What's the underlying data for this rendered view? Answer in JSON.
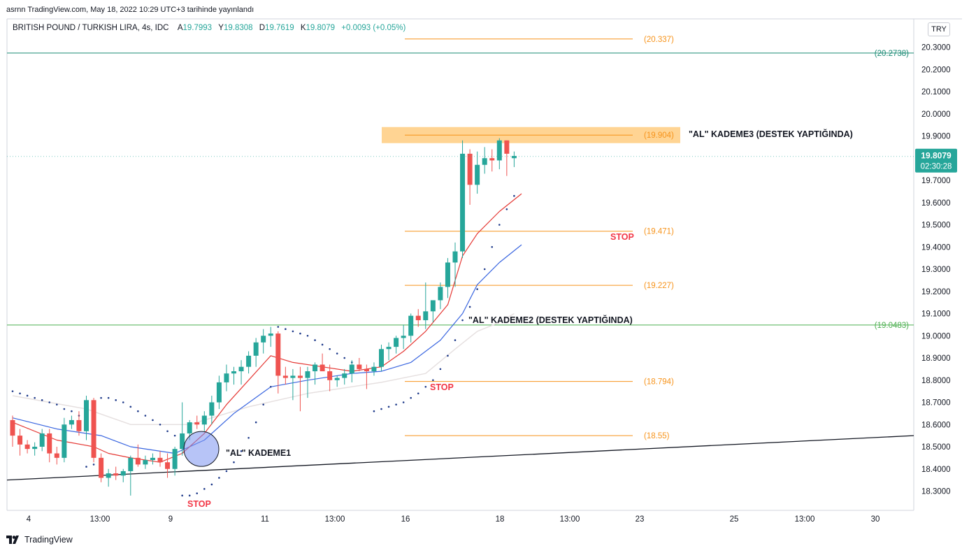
{
  "header": {
    "published": "asrnn TradingView.com, May 18, 2022 10:29 UTC+3 tarihinde yayınlandı"
  },
  "legend": {
    "symbol": "BRITISH POUND / TURKISH LIRA, 4s, IDC",
    "o_label": "A",
    "o": "19.7993",
    "h_label": "Y",
    "h": "19.8308",
    "l_label": "D",
    "l": "19.7619",
    "c_label": "K",
    "c": "19.8079",
    "change": "+0.0093 (+0.05%)"
  },
  "currency_button": "TRY",
  "footer": {
    "logo_text": "TradingView"
  },
  "colors": {
    "up": "#26a69a",
    "down": "#ef5350",
    "orange": "#f7931a",
    "green_line": "#2e8b57",
    "ema_fast": "#e53935",
    "ema_slow": "#3a66e0",
    "sar": "#1e3a8a",
    "highlight": "#ffcc80",
    "stop": "#f23645"
  },
  "chart_data": {
    "type": "candlestick",
    "title": "BRITISH POUND / TURKISH LIRA, 4s, IDC",
    "ylim": [
      18.24,
      20.42
    ],
    "y_ticks": [
      "20.3000",
      "20.2000",
      "20.1000",
      "20.0000",
      "19.9000",
      "19.8000",
      "19.7000",
      "19.6000",
      "19.5000",
      "19.4000",
      "19.3000",
      "19.2000",
      "19.1000",
      "19.0000",
      "18.9000",
      "18.8000",
      "18.7000",
      "18.6000",
      "18.5000",
      "18.4000",
      "18.3000"
    ],
    "x_ticks": [
      "4",
      "13:00",
      "9",
      "11",
      "13:00",
      "16",
      "18",
      "13:00",
      "23",
      "25",
      "13:00",
      "30"
    ],
    "last_price": {
      "value": "19.8079",
      "countdown": "02:30:28"
    },
    "candles": [
      [
        18.62,
        18.64,
        18.5,
        18.55
      ],
      [
        18.55,
        18.58,
        18.46,
        18.51
      ],
      [
        18.51,
        18.53,
        18.47,
        18.49
      ],
      [
        18.49,
        18.52,
        18.46,
        18.5
      ],
      [
        18.5,
        18.58,
        18.48,
        18.56
      ],
      [
        18.56,
        18.58,
        18.43,
        18.47
      ],
      [
        18.47,
        18.5,
        18.42,
        18.45
      ],
      [
        18.45,
        18.63,
        18.43,
        18.6
      ],
      [
        18.6,
        18.64,
        18.58,
        18.62
      ],
      [
        18.62,
        18.66,
        18.55,
        18.57
      ],
      [
        18.57,
        18.73,
        18.53,
        18.71
      ],
      [
        18.71,
        18.72,
        18.43,
        18.45
      ],
      [
        18.45,
        18.47,
        18.34,
        18.36
      ],
      [
        18.36,
        18.4,
        18.32,
        18.38
      ],
      [
        18.38,
        18.41,
        18.35,
        18.37
      ],
      [
        18.37,
        18.4,
        18.34,
        18.39
      ],
      [
        18.39,
        18.46,
        18.28,
        18.45
      ],
      [
        18.45,
        18.51,
        18.41,
        18.42
      ],
      [
        18.42,
        18.46,
        18.4,
        18.44
      ],
      [
        18.44,
        18.47,
        18.42,
        18.45
      ],
      [
        18.45,
        18.48,
        18.41,
        18.43
      ],
      [
        18.43,
        18.47,
        18.36,
        18.4
      ],
      [
        18.4,
        18.5,
        18.37,
        18.49
      ],
      [
        18.49,
        18.7,
        18.46,
        18.56
      ],
      [
        18.56,
        18.62,
        18.53,
        18.61
      ],
      [
        18.61,
        18.64,
        18.58,
        18.6
      ],
      [
        18.6,
        18.66,
        18.57,
        18.64
      ],
      [
        18.64,
        18.73,
        18.6,
        18.7
      ],
      [
        18.7,
        18.82,
        18.67,
        18.79
      ],
      [
        18.79,
        18.87,
        18.75,
        18.83
      ],
      [
        18.83,
        18.86,
        18.78,
        18.84
      ],
      [
        18.84,
        18.89,
        18.78,
        18.86
      ],
      [
        18.86,
        18.93,
        18.83,
        18.91
      ],
      [
        18.91,
        18.99,
        18.86,
        18.97
      ],
      [
        18.97,
        19.03,
        18.92,
        19.0
      ],
      [
        19.0,
        19.04,
        18.95,
        19.01
      ],
      [
        19.01,
        19.02,
        18.74,
        18.82
      ],
      [
        18.82,
        18.86,
        18.78,
        18.81
      ],
      [
        18.81,
        18.85,
        18.71,
        18.82
      ],
      [
        18.82,
        18.86,
        18.66,
        18.81
      ],
      [
        18.81,
        18.86,
        18.72,
        18.84
      ],
      [
        18.84,
        18.88,
        18.78,
        18.87
      ],
      [
        18.87,
        18.92,
        18.85,
        18.84
      ],
      [
        18.84,
        18.87,
        18.75,
        18.8
      ],
      [
        18.8,
        18.82,
        18.77,
        18.81
      ],
      [
        18.81,
        18.85,
        18.78,
        18.83
      ],
      [
        18.83,
        18.89,
        18.79,
        18.87
      ],
      [
        18.87,
        18.9,
        18.84,
        18.85
      ],
      [
        18.85,
        18.87,
        18.76,
        18.84
      ],
      [
        18.84,
        18.88,
        18.82,
        18.86
      ],
      [
        18.86,
        18.96,
        18.84,
        18.94
      ],
      [
        18.94,
        18.97,
        18.89,
        18.95
      ],
      [
        18.95,
        19.0,
        18.92,
        18.99
      ],
      [
        18.99,
        19.05,
        18.94,
        19.0
      ],
      [
        19.0,
        19.1,
        18.97,
        19.09
      ],
      [
        19.09,
        19.12,
        19.04,
        19.07
      ],
      [
        19.07,
        19.24,
        19.03,
        19.11
      ],
      [
        19.11,
        19.14,
        19.06,
        19.16
      ],
      [
        19.16,
        19.24,
        19.12,
        19.22
      ],
      [
        19.22,
        19.35,
        19.17,
        19.33
      ],
      [
        19.33,
        19.42,
        19.22,
        19.38
      ],
      [
        19.38,
        19.88,
        19.35,
        19.82
      ],
      [
        19.82,
        19.84,
        19.59,
        19.68
      ],
      [
        19.68,
        19.83,
        19.64,
        19.77
      ],
      [
        19.77,
        19.85,
        19.73,
        19.8
      ],
      [
        19.8,
        19.84,
        19.74,
        19.79
      ],
      [
        19.79,
        19.89,
        19.75,
        19.88
      ],
      [
        19.88,
        19.88,
        19.72,
        19.82
      ],
      [
        19.8,
        19.83,
        19.76,
        19.81
      ]
    ],
    "ema_fast": [
      [
        0,
        18.61
      ],
      [
        6,
        18.53
      ],
      [
        11,
        18.5
      ],
      [
        13,
        18.47
      ],
      [
        16,
        18.45
      ],
      [
        20,
        18.43
      ],
      [
        23,
        18.47
      ],
      [
        26,
        18.56
      ],
      [
        29,
        18.69
      ],
      [
        32,
        18.8
      ],
      [
        35,
        18.91
      ],
      [
        38,
        18.88
      ],
      [
        42,
        18.86
      ],
      [
        46,
        18.84
      ],
      [
        50,
        18.86
      ],
      [
        53,
        18.93
      ],
      [
        56,
        19.02
      ],
      [
        59,
        19.14
      ],
      [
        61,
        19.36
      ],
      [
        63,
        19.46
      ],
      [
        66,
        19.56
      ],
      [
        69,
        19.64
      ]
    ],
    "ema_slow": [
      [
        0,
        18.63
      ],
      [
        6,
        18.58
      ],
      [
        12,
        18.55
      ],
      [
        16,
        18.5
      ],
      [
        22,
        18.47
      ],
      [
        26,
        18.53
      ],
      [
        30,
        18.65
      ],
      [
        35,
        18.77
      ],
      [
        40,
        18.8
      ],
      [
        46,
        18.83
      ],
      [
        50,
        18.84
      ],
      [
        54,
        18.88
      ],
      [
        58,
        18.98
      ],
      [
        61,
        19.1
      ],
      [
        63,
        19.23
      ],
      [
        66,
        19.33
      ],
      [
        69,
        19.41
      ]
    ],
    "ema_long": [
      [
        0,
        18.73
      ],
      [
        10,
        18.67
      ],
      [
        16,
        18.6
      ],
      [
        24,
        18.6
      ],
      [
        32,
        18.68
      ],
      [
        40,
        18.74
      ],
      [
        50,
        18.79
      ],
      [
        56,
        18.83
      ],
      [
        60,
        18.94
      ],
      [
        63,
        19.02
      ],
      [
        66,
        19.06
      ],
      [
        68,
        19.1
      ]
    ],
    "sar": [
      [
        0,
        18.75
      ],
      [
        1,
        18.74
      ],
      [
        2,
        18.73
      ],
      [
        3,
        18.72
      ],
      [
        4,
        18.71
      ],
      [
        5,
        18.7
      ],
      [
        6,
        18.69
      ],
      [
        7,
        18.67
      ],
      [
        8,
        18.66
      ],
      [
        9,
        18.64
      ],
      [
        10,
        18.41
      ],
      [
        11,
        18.42
      ],
      [
        12,
        18.72
      ],
      [
        13,
        18.72
      ],
      [
        14,
        18.71
      ],
      [
        15,
        18.7
      ],
      [
        16,
        18.68
      ],
      [
        17,
        18.66
      ],
      [
        18,
        18.64
      ],
      [
        19,
        18.62
      ],
      [
        20,
        18.6
      ],
      [
        21,
        18.57
      ],
      [
        22,
        18.55
      ],
      [
        23,
        18.28
      ],
      [
        24,
        18.28
      ],
      [
        25,
        18.29
      ],
      [
        26,
        18.31
      ],
      [
        27,
        18.33
      ],
      [
        28,
        18.36
      ],
      [
        29,
        18.39
      ],
      [
        30,
        18.43
      ],
      [
        31,
        18.48
      ],
      [
        32,
        18.54
      ],
      [
        33,
        18.61
      ],
      [
        34,
        18.69
      ],
      [
        35,
        18.77
      ],
      [
        36,
        19.04
      ],
      [
        37,
        19.03
      ],
      [
        38,
        19.02
      ],
      [
        39,
        19.01
      ],
      [
        40,
        19.0
      ],
      [
        41,
        18.98
      ],
      [
        42,
        18.96
      ],
      [
        43,
        18.94
      ],
      [
        44,
        18.92
      ],
      [
        45,
        18.9
      ],
      [
        46,
        18.88
      ],
      [
        47,
        18.86
      ],
      [
        49,
        18.66
      ],
      [
        50,
        18.67
      ],
      [
        51,
        18.68
      ],
      [
        52,
        18.69
      ],
      [
        53,
        18.7
      ],
      [
        54,
        18.72
      ],
      [
        55,
        18.74
      ],
      [
        56,
        18.77
      ],
      [
        57,
        18.8
      ],
      [
        58,
        18.85
      ],
      [
        59,
        18.91
      ],
      [
        60,
        18.98
      ],
      [
        61,
        19.07
      ],
      [
        62,
        19.13
      ],
      [
        63,
        19.21
      ],
      [
        64,
        19.3
      ],
      [
        65,
        19.4
      ],
      [
        66,
        19.5
      ],
      [
        67,
        19.57
      ],
      [
        68,
        19.63
      ]
    ],
    "levels": [
      {
        "value": 20.337,
        "label": "(20.337)"
      },
      {
        "value": 19.904,
        "label": "(19.904)"
      },
      {
        "value": 19.471,
        "label": "(19.471)"
      },
      {
        "value": 19.227,
        "label": "(19.227)"
      },
      {
        "value": 18.794,
        "label": "(18.794)"
      },
      {
        "value": 18.55,
        "label": "(18.55)"
      }
    ],
    "horizontal_lines": [
      {
        "value": 20.2738,
        "label": "(20.2738)"
      },
      {
        "value": 19.0483,
        "label": "(19.0483)"
      }
    ],
    "annotations": {
      "kademe3": "\"AL\" KADEME3 (DESTEK YAPTIĞINDA)",
      "kademe2": "\"AL\" KADEME2 (DESTEK YAPTIĞINDA)",
      "kademe1": "\"AL\" KADEME1",
      "stop1": "STOP",
      "stop2": "STOP",
      "stop3": "STOP"
    }
  }
}
